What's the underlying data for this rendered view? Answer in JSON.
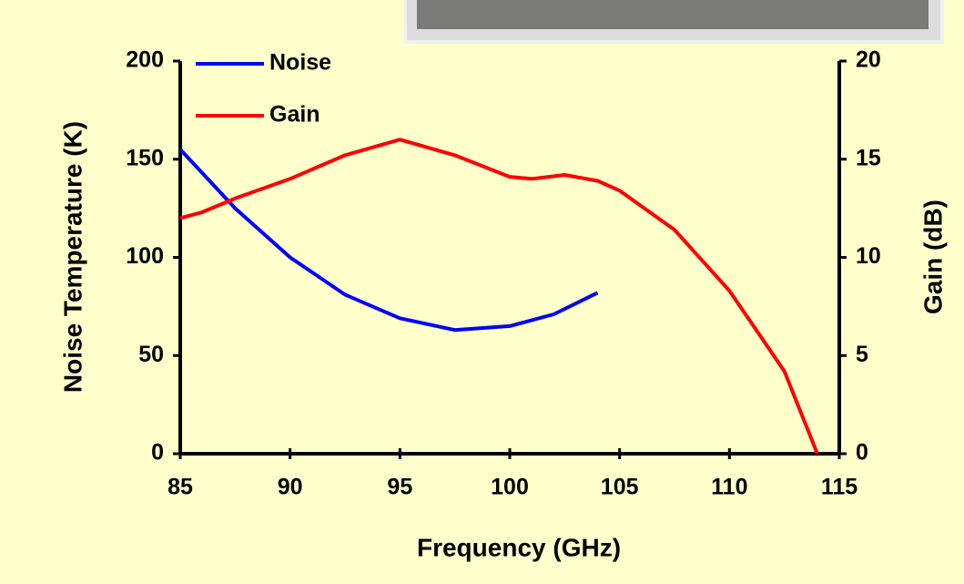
{
  "chart_data": {
    "type": "line",
    "xlabel": "Frequency (GHz)",
    "ylabel": "Noise Temperature (K)",
    "y2label": "Gain (dB)",
    "xlim": [
      85,
      115
    ],
    "xticks": [
      85,
      90,
      95,
      100,
      105,
      110,
      115
    ],
    "ylim": [
      0,
      200
    ],
    "yticks": [
      0,
      50,
      100,
      150,
      200
    ],
    "y2lim": [
      0,
      20
    ],
    "y2ticks": [
      0,
      5,
      10,
      15,
      20
    ],
    "legend": "upper left",
    "series": [
      {
        "name": "Noise",
        "color": "#0000ff",
        "x": [
          85,
          86,
          87.5,
          90,
          92.5,
          95,
          97.5,
          100,
          102,
          104
        ],
        "values": [
          155,
          143,
          125,
          100,
          81,
          69,
          63,
          65,
          71,
          82
        ]
      },
      {
        "name": "Gain",
        "color": "#ff0000",
        "axis": "y2",
        "x": [
          85,
          86,
          87.5,
          90,
          92.5,
          95,
          97.5,
          100,
          101,
          102.5,
          104,
          105,
          107.5,
          110,
          112.5,
          114
        ],
        "values": [
          12,
          12.3,
          13,
          14,
          15.2,
          16,
          15.2,
          14.1,
          14,
          14.2,
          13.9,
          13.4,
          11.4,
          8.3,
          4.2,
          0
        ]
      }
    ]
  }
}
